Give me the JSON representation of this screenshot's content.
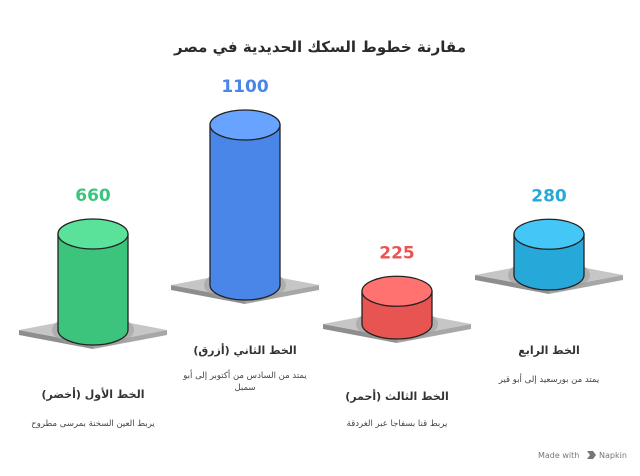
{
  "chart_data": {
    "type": "bar",
    "title": "مقارنة خطوط السكك الحديدية في مصر",
    "categories": [
      "الخط الأول (أخضر)",
      "الخط الثاني (أزرق)",
      "الخط الثالث (أحمر)",
      "الخط الرابع"
    ],
    "values": [
      660,
      1100,
      225,
      280
    ],
    "descriptions": [
      [
        "يربط العين السخنة بمرسى مطروح"
      ],
      [
        "يمتد من السادس من أكتوبر إلى أبو",
        "سمبل"
      ],
      [
        "يربط قنا بسفاجا عبر الغردقة"
      ],
      [
        "يمتد من بورسعيد إلى أبو قير"
      ]
    ],
    "colors": [
      "#3cc47c",
      "#4a86e8",
      "#e85451",
      "#26a9d9"
    ],
    "value_label_colors": [
      "#3cc47c",
      "#4a86e8",
      "#e85451",
      "#26a9d9"
    ],
    "xlabel": "",
    "ylabel": "",
    "grid": false,
    "legend": "none"
  },
  "footer": {
    "made_with": "Made with",
    "brand": "Napkin"
  }
}
